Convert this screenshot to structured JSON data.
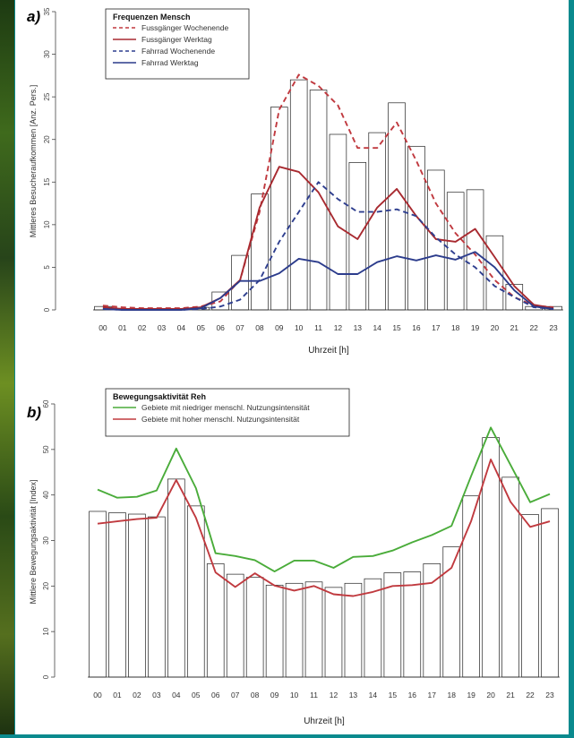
{
  "chart_data": [
    {
      "type": "bar",
      "panel_label": "a)",
      "xlabel": "Uhrzeit [h]",
      "ylabel": "Mittleres Besucheraufkommen [Anz. Pers.]",
      "ylim": [
        0,
        35
      ],
      "yticks": [
        0,
        5,
        10,
        15,
        20,
        25,
        30,
        35
      ],
      "categories": [
        "00",
        "01",
        "02",
        "03",
        "04",
        "05",
        "06",
        "07",
        "08",
        "09",
        "10",
        "11",
        "12",
        "13",
        "14",
        "15",
        "16",
        "17",
        "18",
        "19",
        "20",
        "21",
        "22",
        "23"
      ],
      "values": [
        0.4,
        0,
        0,
        0,
        0,
        0.3,
        2.1,
        6.4,
        13.6,
        23.8,
        27.0,
        25.8,
        20.6,
        17.3,
        20.8,
        24.3,
        19.2,
        16.4,
        13.8,
        14.1,
        8.7,
        3.0,
        0.4,
        0.4
      ],
      "legend": {
        "title": "Frequenzen Mensch",
        "position": "top-left",
        "entries": [
          "Fussgänger Wochenende",
          "Fussgänger Werktag",
          "Fahrrad Wochenende",
          "Fahrrad Werktag"
        ]
      },
      "series": [
        {
          "name": "Fussgänger Wochenende",
          "style": "dashed",
          "color": "#c0393f",
          "values": [
            0.5,
            0.3,
            0.2,
            0.2,
            0.2,
            0.4,
            1.0,
            3.5,
            11.5,
            23.5,
            27.6,
            26.3,
            24.0,
            19.0,
            19.0,
            22.0,
            17.5,
            12.5,
            9.0,
            6.5,
            3.5,
            1.5,
            0.5,
            0.3
          ]
        },
        {
          "name": "Fussgänger Werktag",
          "style": "solid",
          "color": "#a82a30",
          "values": [
            0.3,
            0.1,
            0.1,
            0.1,
            0.1,
            0.3,
            1.4,
            3.5,
            12.0,
            16.8,
            16.2,
            13.8,
            9.8,
            8.3,
            12.0,
            14.2,
            11.0,
            8.3,
            8.0,
            9.5,
            6.2,
            2.8,
            0.6,
            0.2
          ]
        },
        {
          "name": "Fahrrad Wochenende",
          "style": "dashed",
          "color": "#2f3f8f",
          "values": [
            0.1,
            0,
            0,
            0,
            0,
            0.1,
            0.4,
            1.2,
            3.5,
            8.0,
            11.5,
            15.0,
            13.0,
            11.5,
            11.5,
            11.8,
            11.0,
            8.5,
            6.5,
            5.0,
            2.8,
            1.5,
            0.3,
            0.1
          ]
        },
        {
          "name": "Fahrrad Werktag",
          "style": "solid",
          "color": "#2c3c8c",
          "values": [
            0.1,
            0,
            0,
            0,
            0,
            0.2,
            1.4,
            3.4,
            3.4,
            4.3,
            6.0,
            5.6,
            4.2,
            4.2,
            5.6,
            6.3,
            5.8,
            6.4,
            5.9,
            6.8,
            5.0,
            2.3,
            0.4,
            0.1
          ]
        }
      ]
    },
    {
      "type": "bar",
      "panel_label": "b)",
      "xlabel": "Uhrzeit [h]",
      "ylabel": "Mittlere Bewegungsaktivität [Index]",
      "ylim": [
        0,
        60
      ],
      "yticks": [
        0,
        10,
        20,
        30,
        40,
        50,
        60
      ],
      "categories": [
        "00",
        "01",
        "02",
        "03",
        "04",
        "05",
        "06",
        "07",
        "08",
        "09",
        "10",
        "11",
        "12",
        "13",
        "14",
        "15",
        "16",
        "17",
        "18",
        "19",
        "20",
        "21",
        "22",
        "23"
      ],
      "values": [
        36.4,
        36.1,
        35.8,
        35.2,
        43.5,
        37.6,
        24.9,
        22.6,
        21.9,
        20.2,
        20.6,
        20.9,
        19.7,
        20.6,
        21.6,
        22.9,
        23.1,
        24.9,
        28.6,
        39.8,
        52.6,
        43.9,
        35.7,
        37.0
      ],
      "legend": {
        "title": "Bewegungsaktivität Reh",
        "position": "top-left",
        "entries": [
          "Gebiete mit niedriger menschl. Nutzungsintensität",
          "Gebiete mit hoher menschl. Nutzungsintensität"
        ]
      },
      "series": [
        {
          "name": "Gebiete mit niedriger menschl. Nutzungsintensität",
          "style": "solid",
          "color": "#4aac3a",
          "values": [
            41.2,
            39.4,
            39.6,
            41.0,
            50.2,
            41.5,
            27.2,
            26.6,
            25.7,
            23.2,
            25.6,
            25.6,
            24.0,
            26.4,
            26.6,
            27.8,
            29.6,
            31.2,
            33.2,
            44.2,
            54.8,
            46.6,
            38.4,
            40.2
          ]
        },
        {
          "name": "Gebiete mit hoher menschl. Nutzungsintensität",
          "style": "solid",
          "color": "#c03a3f",
          "values": [
            33.7,
            34.2,
            34.7,
            35.0,
            43.3,
            35.0,
            23.0,
            19.8,
            22.8,
            20.1,
            19.0,
            20.0,
            18.2,
            17.8,
            18.7,
            20.0,
            20.2,
            20.7,
            24.0,
            34.3,
            47.8,
            38.5,
            33.0,
            34.2
          ]
        }
      ]
    }
  ]
}
